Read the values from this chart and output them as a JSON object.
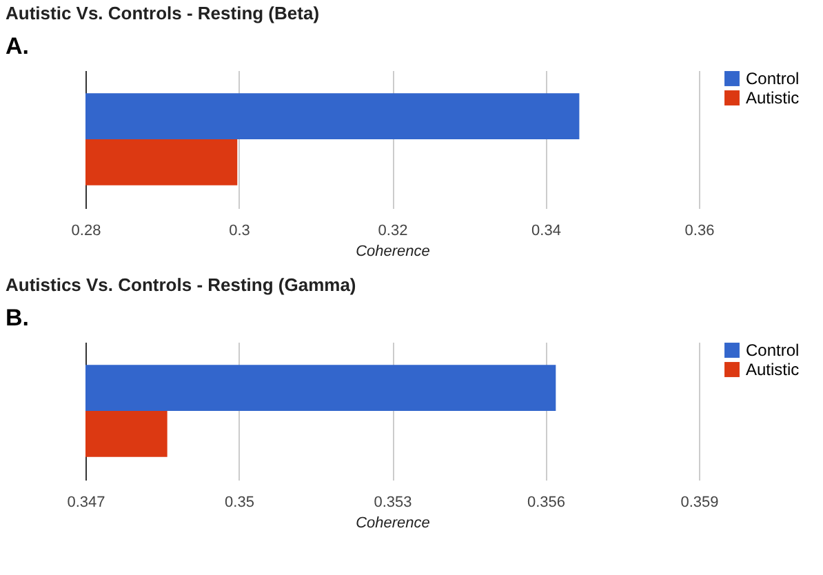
{
  "chart_data": [
    {
      "type": "bar",
      "orientation": "horizontal",
      "title": "Autistic Vs. Controls - Resting (Beta)",
      "annotations": [
        "A."
      ],
      "xlabel": "Coherence",
      "categories": [
        null
      ],
      "series": [
        {
          "name": "Control",
          "color": "#3366cc",
          "values": [
            0.3444
          ]
        },
        {
          "name": "Autistic",
          "color": "#dc3912",
          "values": [
            0.2998
          ]
        }
      ],
      "xlim": [
        0.28,
        0.36
      ],
      "xticks": [
        0.28,
        0.3,
        0.32,
        0.34,
        0.36
      ],
      "grid": "x",
      "legend": "top right"
    },
    {
      "type": "bar",
      "orientation": "horizontal",
      "title": "Autistics Vs. Controls - Resting (Gamma)",
      "annotations": [
        "B."
      ],
      "xlabel": "Coherence",
      "categories": [
        null
      ],
      "series": [
        {
          "name": "Control",
          "color": "#3366cc",
          "values": [
            0.3562
          ]
        },
        {
          "name": "Autistic",
          "color": "#dc3912",
          "values": [
            0.3486
          ]
        }
      ],
      "xlim": [
        0.347,
        0.359
      ],
      "xticks": [
        0.347,
        0.35,
        0.353,
        0.356,
        0.359
      ],
      "grid": "x",
      "legend": "top right"
    }
  ]
}
